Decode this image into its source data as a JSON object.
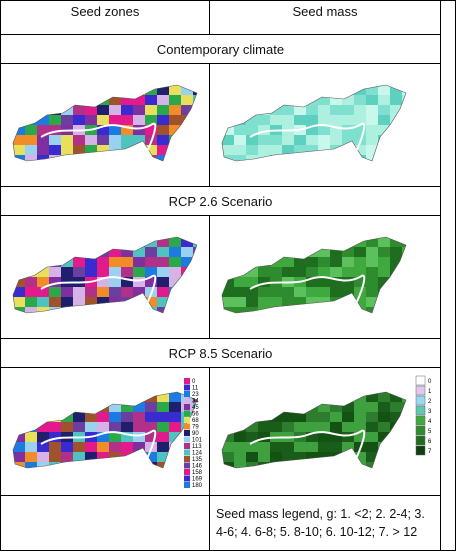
{
  "table": {
    "header": [
      "Seed zones",
      "Seed mass"
    ],
    "sections": [
      "Contemporary climate",
      "RCP 2.6 Scenario",
      "RCP 8.5 Scenario"
    ],
    "zone_legend": [
      0,
      11,
      23,
      34,
      45,
      56,
      68,
      79,
      90,
      101,
      113,
      124,
      135,
      146,
      158,
      169,
      180
    ],
    "mass_legend": [
      0,
      1,
      2,
      3,
      4,
      5,
      6,
      7
    ],
    "note": "Seed mass legend, g: 1. <2; 2. 2-4; 3. 4-6; 4. 6-8; 5. 8-10; 6. 10-12; 7. > 12"
  }
}
